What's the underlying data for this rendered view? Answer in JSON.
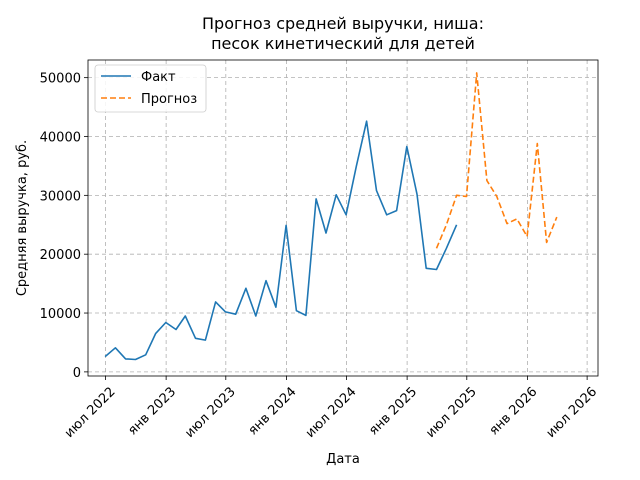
{
  "chart_data": {
    "type": "line",
    "title_lines": [
      "Прогноз средней выручки, ниша:",
      "песок кинетический для детей"
    ],
    "xlabel": "Дата",
    "ylabel": "Средняя выручка, руб.",
    "ylim": [
      -700,
      53000
    ],
    "xlim": [
      "2022-05-09",
      "2026-08-03"
    ],
    "y_ticks": [
      0,
      10000,
      20000,
      30000,
      40000,
      50000
    ],
    "y_tick_labels": [
      "0",
      "10000",
      "20000",
      "30000",
      "40000",
      "50000"
    ],
    "x_ticks": [
      "2022-07-01",
      "2023-01-01",
      "2023-07-01",
      "2024-01-01",
      "2024-07-01",
      "2025-01-01",
      "2025-07-01",
      "2026-01-01",
      "2026-07-01"
    ],
    "x_tick_labels": [
      "июл 2022",
      "янв 2023",
      "июл 2023",
      "янв 2024",
      "июл 2024",
      "янв 2025",
      "июл 2025",
      "янв 2026",
      "июл 2026"
    ],
    "grid": true,
    "legend_position": "top-left",
    "series": [
      {
        "name": "Факт",
        "color": "#1f77b4",
        "style": "solid",
        "x": [
          "2022-06-30",
          "2022-07-31",
          "2022-08-31",
          "2022-09-30",
          "2022-10-31",
          "2022-11-30",
          "2022-12-31",
          "2023-01-31",
          "2023-02-28",
          "2023-03-31",
          "2023-04-30",
          "2023-05-31",
          "2023-06-30",
          "2023-07-31",
          "2023-08-31",
          "2023-09-30",
          "2023-10-31",
          "2023-11-30",
          "2023-12-31",
          "2024-01-31",
          "2024-02-29",
          "2024-03-31",
          "2024-04-30",
          "2024-05-31",
          "2024-06-30",
          "2024-07-31",
          "2024-08-31",
          "2024-09-30",
          "2024-10-31",
          "2024-11-30",
          "2024-12-31",
          "2025-01-31",
          "2025-02-28",
          "2025-03-31",
          "2025-04-30",
          "2025-05-31"
        ],
        "y": [
          2600,
          4100,
          2200,
          2100,
          2900,
          6500,
          8400,
          7200,
          9500,
          5700,
          5400,
          11900,
          10200,
          9800,
          14200,
          9500,
          15500,
          11000,
          24900,
          10400,
          9600,
          29400,
          23600,
          30100,
          26700,
          35000,
          42600,
          30800,
          26700,
          27400,
          38300,
          30200,
          17600,
          17400,
          21000,
          25000
        ]
      },
      {
        "name": "Прогноз",
        "color": "#ff7f0e",
        "style": "dashed",
        "x": [
          "2025-03-31",
          "2025-04-30",
          "2025-05-31",
          "2025-06-30",
          "2025-07-31",
          "2025-08-31",
          "2025-09-30",
          "2025-10-31",
          "2025-11-30",
          "2025-12-31",
          "2026-01-31",
          "2026-02-28",
          "2026-03-31",
          "2026-04-30",
          "2026-05-31"
        ],
        "y": [
          21000,
          25000,
          30000,
          29800,
          50800,
          32500,
          29800,
          25200,
          26000,
          23000,
          38800,
          22000,
          26300,
          null,
          null
        ]
      }
    ]
  }
}
